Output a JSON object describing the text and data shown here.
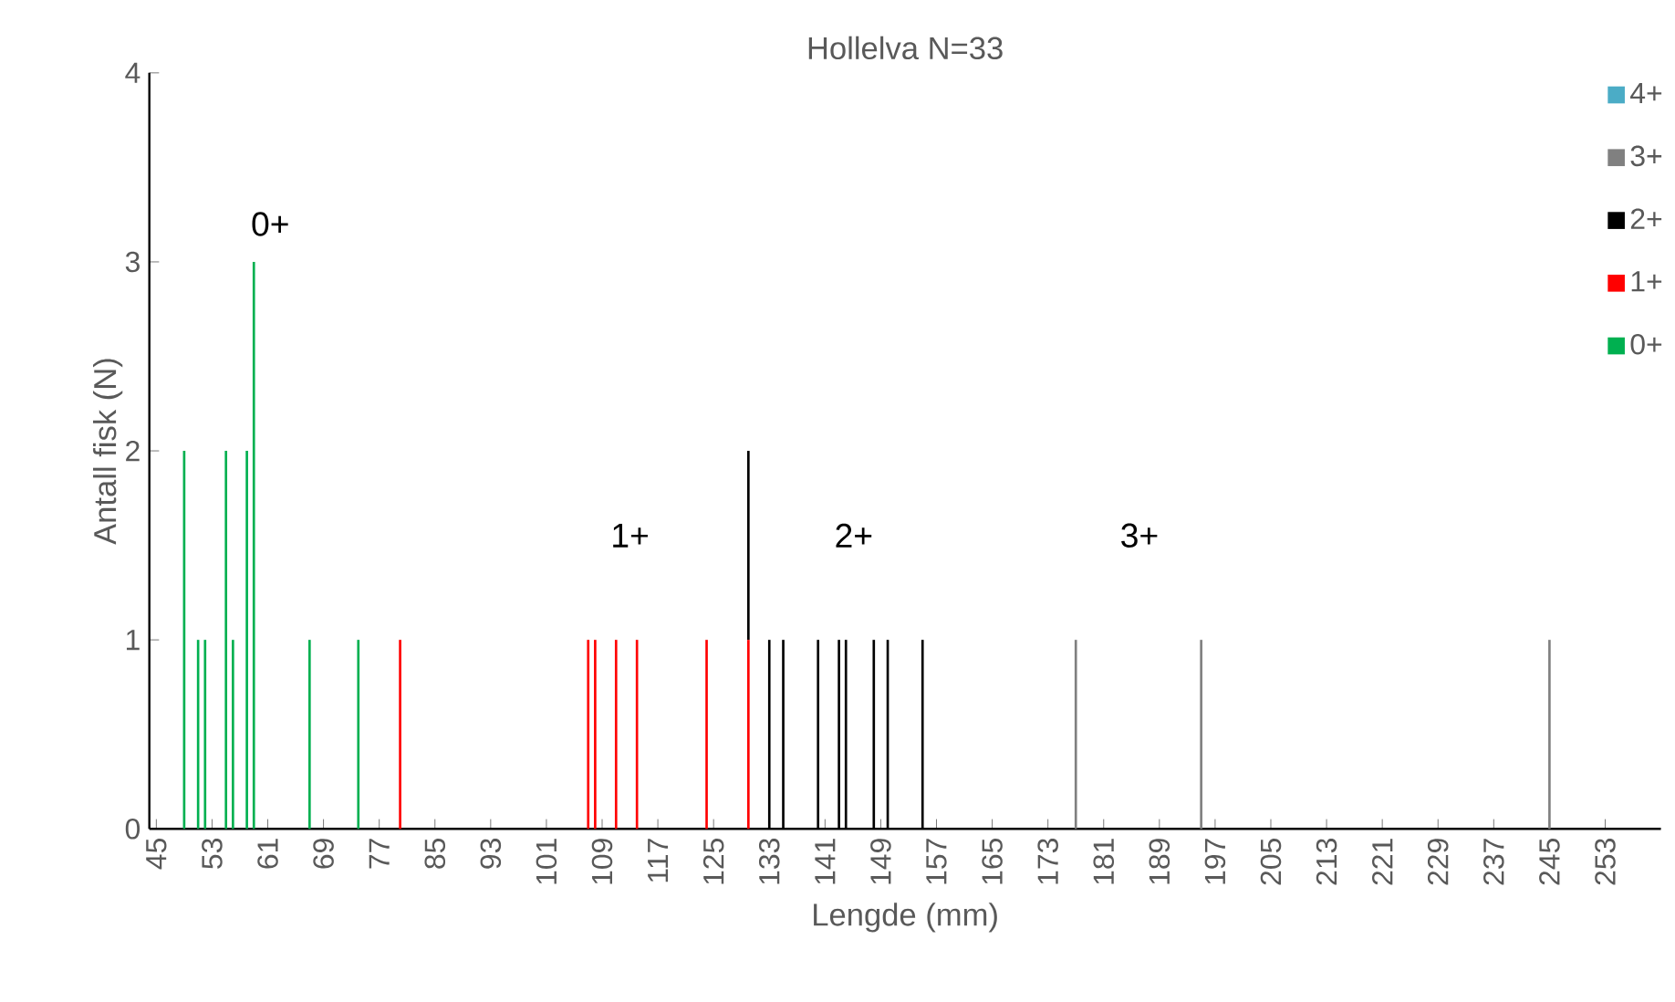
{
  "chart_data": {
    "type": "bar",
    "stacked": true,
    "title": "Hollelva N=33",
    "xlabel": "Lengde (mm)",
    "ylabel": "Antall fisk (N)",
    "x": [
      49,
      51,
      52,
      55,
      56,
      58,
      59,
      67,
      74,
      80,
      107,
      108,
      111,
      114,
      124,
      130,
      133,
      135,
      140,
      143,
      144,
      148,
      150,
      155,
      177,
      195,
      245
    ],
    "series": [
      {
        "name": "0+",
        "color": "#00b050",
        "values": [
          2,
          1,
          1,
          2,
          1,
          2,
          3,
          1,
          1,
          0,
          0,
          0,
          0,
          0,
          0,
          0,
          0,
          0,
          0,
          0,
          0,
          0,
          0,
          0,
          0,
          0,
          0
        ]
      },
      {
        "name": "1+",
        "color": "#ff0000",
        "values": [
          0,
          0,
          0,
          0,
          0,
          0,
          0,
          0,
          0,
          1,
          1,
          1,
          1,
          1,
          1,
          1,
          0,
          0,
          0,
          0,
          0,
          0,
          0,
          0,
          0,
          0,
          0
        ]
      },
      {
        "name": "2+",
        "color": "#000000",
        "values": [
          0,
          0,
          0,
          0,
          0,
          0,
          0,
          0,
          0,
          0,
          0,
          0,
          0,
          0,
          0,
          1,
          1,
          1,
          1,
          1,
          1,
          1,
          1,
          1,
          0,
          0,
          0
        ]
      },
      {
        "name": "3+",
        "color": "#808080",
        "values": [
          0,
          0,
          0,
          0,
          0,
          0,
          0,
          0,
          0,
          0,
          0,
          0,
          0,
          0,
          0,
          0,
          0,
          0,
          0,
          0,
          0,
          0,
          0,
          0,
          1,
          1,
          1
        ]
      },
      {
        "name": "4+",
        "color": "#4bacc6",
        "values": [
          null,
          null,
          null,
          null,
          null,
          null,
          null,
          null,
          null,
          null,
          null,
          null,
          null,
          null,
          null,
          null,
          null,
          null,
          null,
          null,
          null,
          null,
          null,
          null,
          null,
          null,
          null
        ]
      }
    ],
    "xlim": [
      44,
      261
    ],
    "xticks": [
      45,
      53,
      61,
      69,
      77,
      85,
      93,
      101,
      109,
      117,
      125,
      133,
      141,
      149,
      157,
      165,
      173,
      181,
      189,
      197,
      205,
      213,
      221,
      229,
      237,
      245,
      253
    ],
    "ylim": [
      0,
      4
    ],
    "yticks": [
      0,
      1,
      2,
      3,
      4
    ],
    "grid": false,
    "legend": "right",
    "annotations": [
      "0+",
      "1+",
      "2+",
      "3+"
    ]
  }
}
